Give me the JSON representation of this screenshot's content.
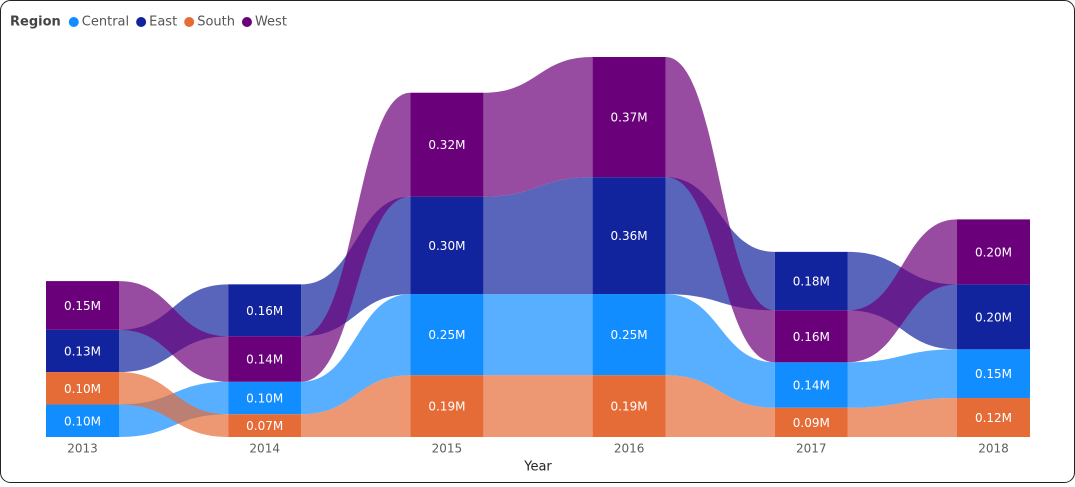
{
  "chart_data": {
    "type": "ribbon",
    "legend_title": "Region",
    "x_label": "Year",
    "categories": [
      "2013",
      "2014",
      "2015",
      "2016",
      "2017",
      "2018"
    ],
    "series": [
      {
        "name": "Central",
        "color": "#118DFF",
        "values": [
          0.1,
          0.1,
          0.25,
          0.25,
          0.14,
          0.15
        ],
        "value_labels": [
          "0.10M",
          "0.10M",
          "0.25M",
          "0.25M",
          "0.14M",
          "0.15M"
        ]
      },
      {
        "name": "East",
        "color": "#12239E",
        "values": [
          0.13,
          0.16,
          0.3,
          0.36,
          0.18,
          0.2
        ],
        "value_labels": [
          "0.13M",
          "0.16M",
          "0.30M",
          "0.36M",
          "0.18M",
          "0.20M"
        ]
      },
      {
        "name": "South",
        "color": "#E66C37",
        "values": [
          0.1,
          0.07,
          0.19,
          0.19,
          0.09,
          0.12
        ],
        "value_labels": [
          "0.10M",
          "0.07M",
          "0.19M",
          "0.19M",
          "0.09M",
          "0.12M"
        ]
      },
      {
        "name": "West",
        "color": "#6B007B",
        "values": [
          0.15,
          0.14,
          0.32,
          0.37,
          0.16,
          0.2
        ],
        "value_labels": [
          "0.15M",
          "0.14M",
          "0.32M",
          "0.37M",
          "0.16M",
          "0.20M"
        ]
      }
    ]
  }
}
